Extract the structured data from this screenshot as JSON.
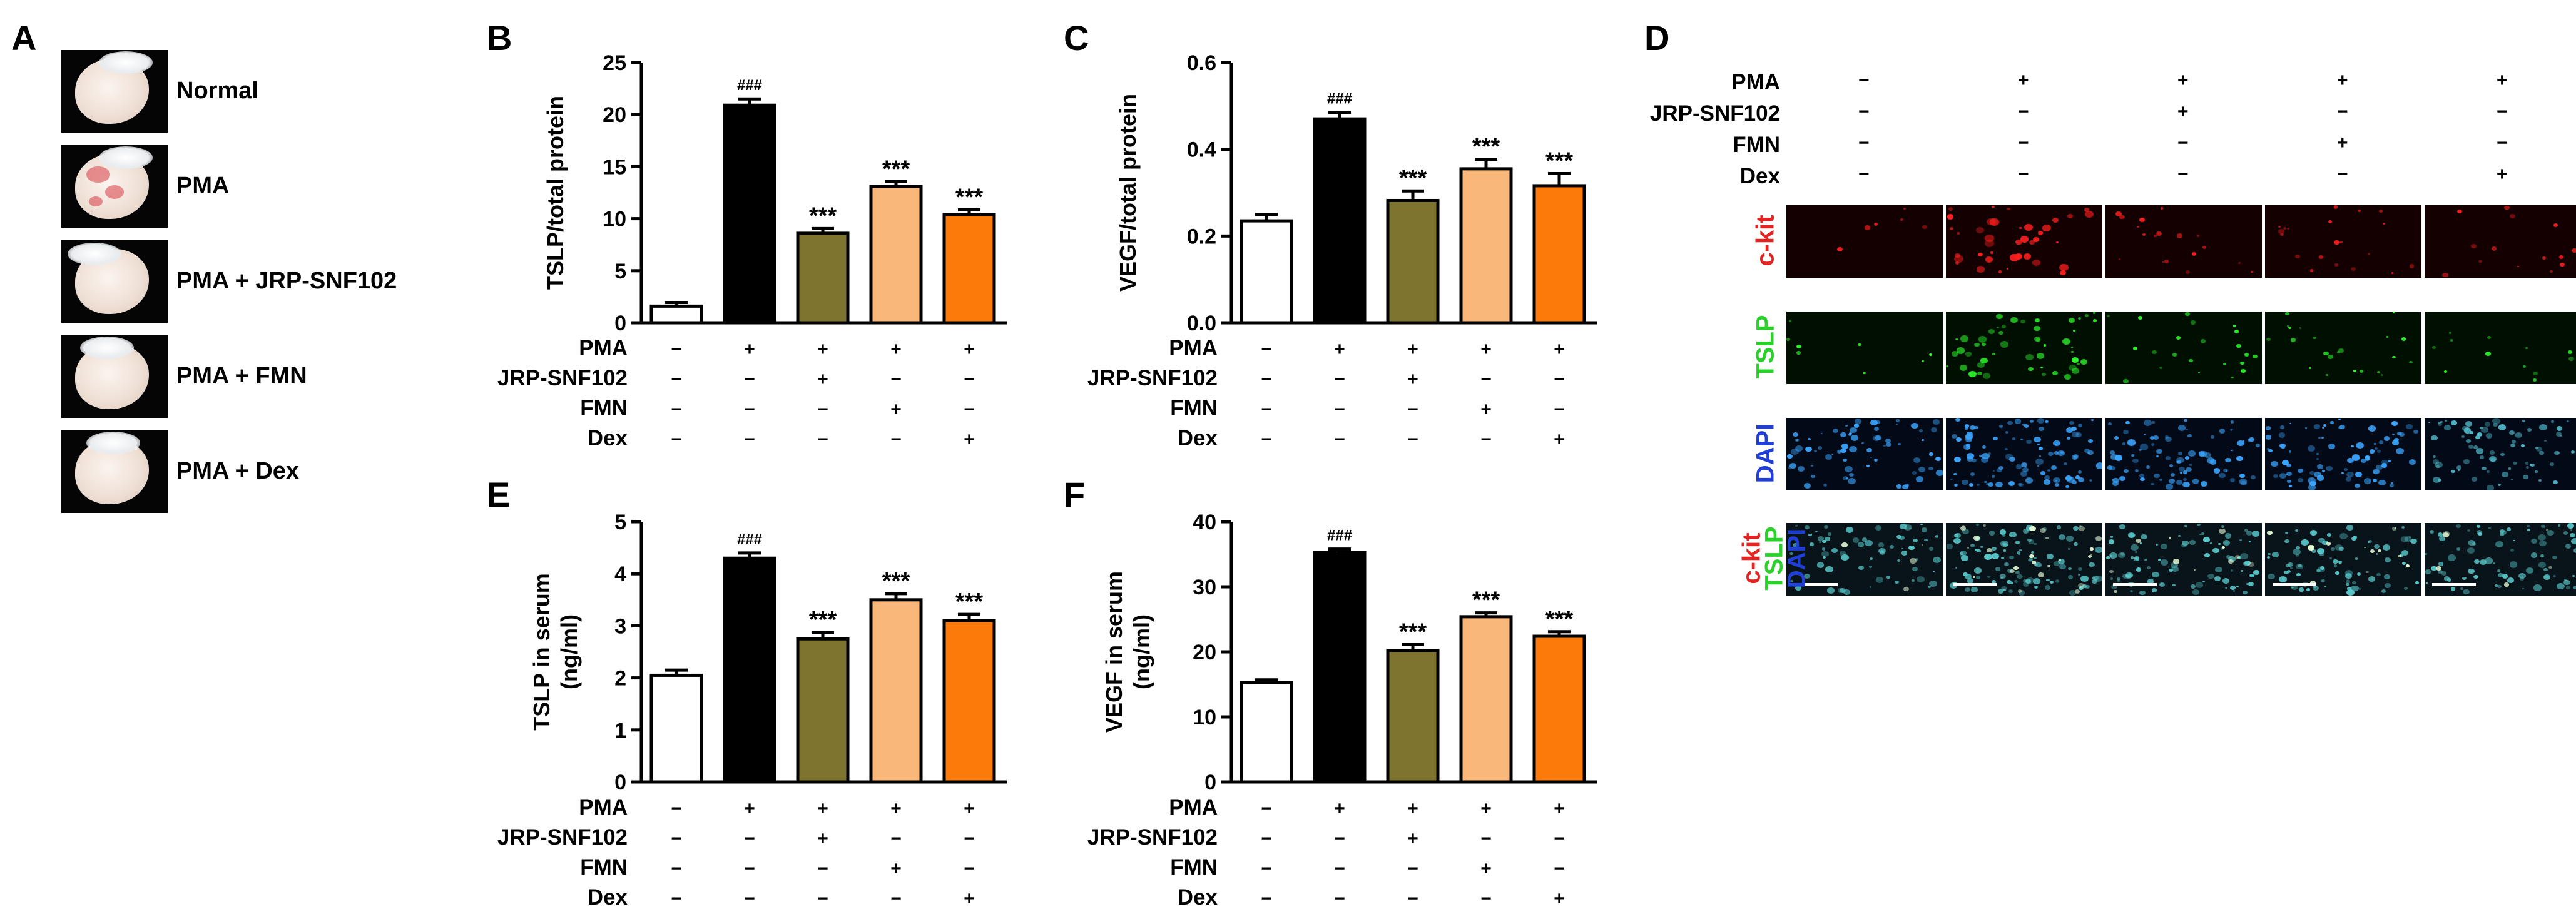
{
  "panels": {
    "A": "A",
    "B": "B",
    "C": "C",
    "D": "D",
    "E": "E",
    "F": "F"
  },
  "panel_a": {
    "labels": [
      "Normal",
      "PMA",
      "PMA + JRP-SNF102",
      "PMA + FMN",
      "PMA + Dex"
    ]
  },
  "conditions": {
    "row_labels": [
      "PMA",
      "JRP-SNF102",
      "FMN",
      "Dex"
    ],
    "matrix": [
      [
        "−",
        "+",
        "+",
        "+",
        "+"
      ],
      [
        "−",
        "−",
        "+",
        "−",
        "−"
      ],
      [
        "−",
        "−",
        "−",
        "+",
        "−"
      ],
      [
        "−",
        "−",
        "−",
        "−",
        "+"
      ]
    ]
  },
  "panel_d": {
    "stains": [
      "c-kit",
      "TSLP",
      "DAPI"
    ],
    "merge_labels": [
      "c-kit",
      "TSLP",
      "DAPI"
    ],
    "stain_colors": {
      "c-kit": "#e32222",
      "TSLP": "#2ad12a",
      "DAPI": "#1f3fd6"
    }
  },
  "colors": {
    "bars": [
      "#ffffff",
      "#000000",
      "#7e7430",
      "#f9b87a",
      "#fb7a0a"
    ]
  },
  "chart_data": [
    {
      "id": "B",
      "type": "bar",
      "categories": [
        "Normal",
        "PMA",
        "PMA + JRP-SNF102",
        "PMA + FMN",
        "PMA + Dex"
      ],
      "values": [
        1.6,
        20.9,
        8.6,
        13.1,
        10.4
      ],
      "errors": [
        0.35,
        0.6,
        0.45,
        0.45,
        0.45
      ],
      "annotations": [
        "",
        "###",
        "***",
        "***",
        "***"
      ],
      "ylabel": "TSLP/total protein",
      "ylim": [
        0,
        25
      ],
      "yticks": [
        "0",
        "5",
        "10",
        "15",
        "20",
        "25"
      ],
      "ytick_values": [
        0,
        5,
        10,
        15,
        20,
        25
      ]
    },
    {
      "id": "C",
      "type": "bar",
      "categories": [
        "Normal",
        "PMA",
        "PMA + JRP-SNF102",
        "PMA + FMN",
        "PMA + Dex"
      ],
      "values": [
        0.235,
        0.47,
        0.282,
        0.355,
        0.316
      ],
      "errors": [
        0.015,
        0.015,
        0.022,
        0.022,
        0.028
      ],
      "annotations": [
        "",
        "###",
        "***",
        "***",
        "***"
      ],
      "ylabel": "VEGF/total protein",
      "ylim": [
        0,
        0.6
      ],
      "yticks": [
        "0.0",
        "0.2",
        "0.4",
        "0.6"
      ],
      "ytick_values": [
        0,
        0.2,
        0.4,
        0.6
      ]
    },
    {
      "id": "E",
      "type": "bar",
      "categories": [
        "Normal",
        "PMA",
        "PMA + JRP-SNF102",
        "PMA + FMN",
        "PMA + Dex"
      ],
      "values": [
        2.05,
        4.3,
        2.75,
        3.5,
        3.1
      ],
      "errors": [
        0.1,
        0.1,
        0.12,
        0.12,
        0.12
      ],
      "annotations": [
        "",
        "###",
        "***",
        "***",
        "***"
      ],
      "ylabel": "TSLP in serum",
      "ylabel2": "(ng/ml)",
      "ylim": [
        0,
        5
      ],
      "yticks": [
        "0",
        "1",
        "2",
        "3",
        "4",
        "5"
      ],
      "ytick_values": [
        0,
        1,
        2,
        3,
        4,
        5
      ]
    },
    {
      "id": "F",
      "type": "bar",
      "categories": [
        "Normal",
        "PMA",
        "PMA + JRP-SNF102",
        "PMA + FMN",
        "PMA + Dex"
      ],
      "values": [
        15.3,
        35.3,
        20.2,
        25.4,
        22.4
      ],
      "errors": [
        0.4,
        0.5,
        0.9,
        0.6,
        0.7
      ],
      "annotations": [
        "",
        "###",
        "***",
        "***",
        "***"
      ],
      "ylabel": "VEGF in serum",
      "ylabel2": "(ng/ml)",
      "ylim": [
        0,
        40
      ],
      "yticks": [
        "0",
        "10",
        "20",
        "30",
        "40"
      ],
      "ytick_values": [
        0,
        10,
        20,
        30,
        40
      ]
    }
  ]
}
